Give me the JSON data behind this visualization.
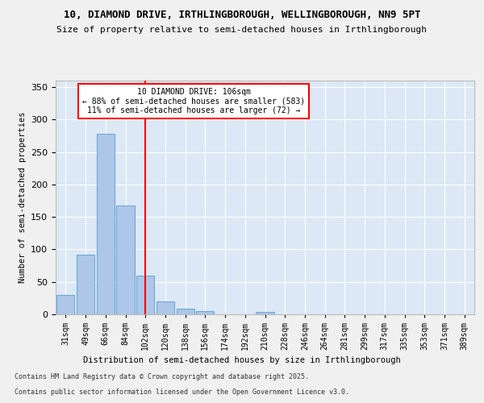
{
  "title_line1": "10, DIAMOND DRIVE, IRTHLINGBOROUGH, WELLINGBOROUGH, NN9 5PT",
  "title_line2": "Size of property relative to semi-detached houses in Irthlingborough",
  "xlabel": "Distribution of semi-detached houses by size in Irthlingborough",
  "ylabel": "Number of semi-detached properties",
  "bins": [
    "31sqm",
    "49sqm",
    "66sqm",
    "84sqm",
    "102sqm",
    "120sqm",
    "138sqm",
    "156sqm",
    "174sqm",
    "192sqm",
    "210sqm",
    "228sqm",
    "246sqm",
    "264sqm",
    "281sqm",
    "299sqm",
    "317sqm",
    "335sqm",
    "353sqm",
    "371sqm",
    "389sqm"
  ],
  "values": [
    30,
    92,
    278,
    167,
    60,
    20,
    9,
    5,
    0,
    0,
    4,
    0,
    0,
    0,
    0,
    0,
    0,
    0,
    0,
    0,
    0
  ],
  "bar_color": "#aec6e8",
  "bar_edge_color": "#6aaad4",
  "vline_x_index": 4,
  "vline_color": "red",
  "annotation_title": "10 DIAMOND DRIVE: 106sqm",
  "annotation_line2": "← 88% of semi-detached houses are smaller (583)",
  "annotation_line3": "11% of semi-detached houses are larger (72) →",
  "annotation_box_color": "white",
  "annotation_box_edge": "red",
  "footnote1": "Contains HM Land Registry data © Crown copyright and database right 2025.",
  "footnote2": "Contains public sector information licensed under the Open Government Licence v3.0.",
  "background_color": "#dce8f5",
  "fig_background": "#f0f0f0",
  "ylim": [
    0,
    360
  ],
  "yticks": [
    0,
    50,
    100,
    150,
    200,
    250,
    300,
    350
  ]
}
